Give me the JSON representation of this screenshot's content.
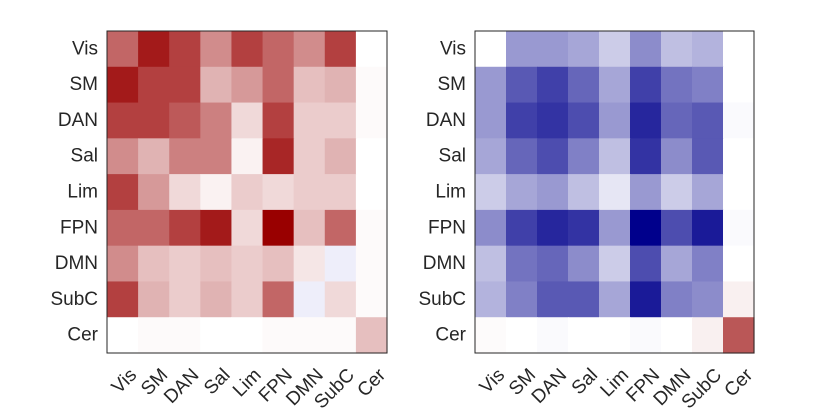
{
  "chart_data": [
    {
      "type": "heatmap",
      "colormap": "white-to-red",
      "colors": {
        "low": "#ffffff",
        "high": "#990000"
      },
      "vmin": 0,
      "vmax": 1,
      "x_tick_labels": [
        "Vis",
        "SM",
        "DAN",
        "Sal",
        "Lim",
        "FPN",
        "DMN",
        "SubC",
        "Cer"
      ],
      "y_tick_labels": [
        "Vis",
        "SM",
        "DAN",
        "Sal",
        "Lim",
        "FPN",
        "DMN",
        "SubC",
        "Cer"
      ],
      "values": [
        [
          0.6,
          0.9,
          0.75,
          0.45,
          0.75,
          0.6,
          0.45,
          0.75,
          0.0
        ],
        [
          0.9,
          0.75,
          0.75,
          0.3,
          0.4,
          0.6,
          0.25,
          0.3,
          0.02
        ],
        [
          0.75,
          0.75,
          0.65,
          0.5,
          0.15,
          0.75,
          0.2,
          0.2,
          0.02
        ],
        [
          0.45,
          0.3,
          0.5,
          0.5,
          0.05,
          0.85,
          0.2,
          0.3,
          0.0
        ],
        [
          0.75,
          0.4,
          0.15,
          0.05,
          0.2,
          0.15,
          0.2,
          0.2,
          0.0
        ],
        [
          0.6,
          0.6,
          0.75,
          0.9,
          0.15,
          1.0,
          0.25,
          0.6,
          0.02
        ],
        [
          0.45,
          0.25,
          0.2,
          0.25,
          0.2,
          0.25,
          0.1,
          -0.08,
          0.02
        ],
        [
          0.75,
          0.3,
          0.2,
          0.3,
          0.2,
          0.6,
          -0.08,
          0.15,
          0.02
        ],
        [
          0.0,
          0.02,
          0.02,
          0.0,
          0.0,
          0.02,
          0.02,
          0.02,
          0.25
        ]
      ]
    },
    {
      "type": "heatmap",
      "colormap": "blue-to-white-to-red",
      "colors": {
        "low": "#00008c",
        "mid": "#ffffff",
        "high": "#b24444"
      },
      "vmin": -1,
      "vmax": 1,
      "x_tick_labels": [
        "Vis",
        "SM",
        "DAN",
        "Sal",
        "Lim",
        "FPN",
        "DMN",
        "SubC",
        "Cer"
      ],
      "y_tick_labels": [
        "Vis",
        "SM",
        "DAN",
        "Sal",
        "Lim",
        "FPN",
        "DMN",
        "SubC",
        "Cer"
      ],
      "values": [
        [
          0.0,
          -0.4,
          -0.4,
          -0.35,
          -0.2,
          -0.45,
          -0.25,
          -0.3,
          0.0
        ],
        [
          -0.4,
          -0.65,
          -0.75,
          -0.6,
          -0.35,
          -0.75,
          -0.55,
          -0.5,
          0.0
        ],
        [
          -0.4,
          -0.75,
          -0.8,
          -0.7,
          -0.4,
          -0.85,
          -0.6,
          -0.65,
          -0.02
        ],
        [
          -0.35,
          -0.6,
          -0.7,
          -0.5,
          -0.25,
          -0.8,
          -0.45,
          -0.65,
          0.0
        ],
        [
          -0.2,
          -0.35,
          -0.4,
          -0.25,
          -0.1,
          -0.4,
          -0.2,
          -0.35,
          0.0
        ],
        [
          -0.45,
          -0.75,
          -0.85,
          -0.8,
          -0.4,
          -1.0,
          -0.7,
          -0.9,
          -0.02
        ],
        [
          -0.25,
          -0.55,
          -0.6,
          -0.45,
          -0.2,
          -0.7,
          -0.35,
          -0.5,
          0.0
        ],
        [
          -0.3,
          -0.5,
          -0.65,
          -0.65,
          -0.35,
          -0.9,
          -0.5,
          -0.45,
          0.08
        ],
        [
          0.02,
          0.0,
          -0.02,
          0.0,
          0.0,
          -0.02,
          0.0,
          0.08,
          0.9
        ]
      ]
    }
  ]
}
